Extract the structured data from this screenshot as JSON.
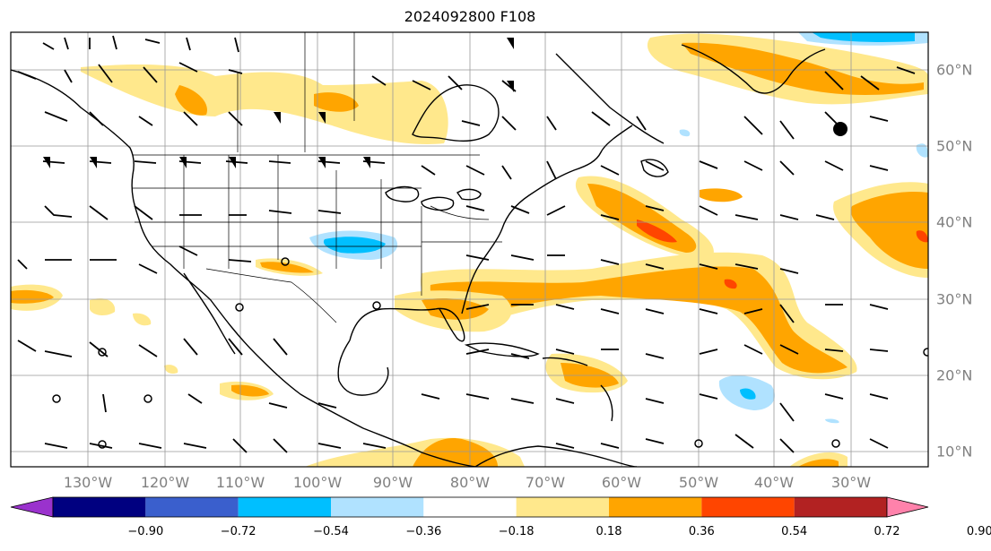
{
  "title": "2024092800 F108",
  "lon_labels": [
    "130°W",
    "120°W",
    "110°W",
    "100°W",
    "90°W",
    "80°W",
    "70°W",
    "60°W",
    "50°W",
    "40°W",
    "30°W"
  ],
  "lat_labels": [
    "60°N",
    "50°N",
    "40°N",
    "30°N",
    "20°N",
    "10°N"
  ],
  "colorbar": {
    "colors": [
      "#9a32cd",
      "#000080",
      "#3a5fcd",
      "#00bfff",
      "#b0e2ff",
      "#ffffff",
      "#ffe88c",
      "#ffa500",
      "#ff4500",
      "#b22222",
      "#ff82ab"
    ],
    "ticks": [
      "−0.90",
      "−0.72",
      "−0.54",
      "−0.36",
      "−0.18",
      "0.18",
      "0.36",
      "0.54",
      "0.72",
      "0.90"
    ]
  },
  "colors": {
    "grid": "#999999",
    "coast": "#000000",
    "tick_label": "#808080"
  }
}
